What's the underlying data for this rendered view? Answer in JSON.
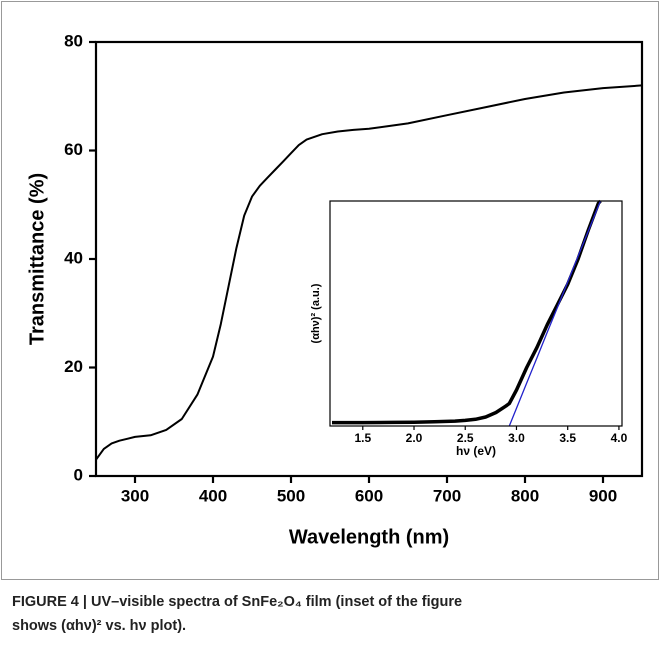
{
  "chart_data": [
    {
      "type": "line",
      "xlabel": "Wavelength (nm)",
      "ylabel": "Transmittance (%)",
      "x": [
        250,
        260,
        270,
        280,
        300,
        320,
        340,
        360,
        380,
        400,
        410,
        420,
        430,
        440,
        450,
        460,
        470,
        480,
        490,
        500,
        510,
        520,
        540,
        560,
        580,
        600,
        650,
        700,
        750,
        800,
        850,
        900,
        950
      ],
      "series": [
        {
          "color": "#000000",
          "values": [
            3,
            5,
            6,
            6.5,
            7.2,
            7.5,
            8.5,
            10.5,
            15,
            22,
            28,
            35,
            42,
            48,
            51.5,
            53.5,
            55,
            56.5,
            58,
            59.5,
            61,
            62,
            63,
            63.5,
            63.8,
            64,
            65,
            66.5,
            68,
            69.5,
            70.7,
            71.5,
            72
          ]
        }
      ],
      "xlim": [
        250,
        950
      ],
      "xticks": [
        300,
        400,
        500,
        600,
        700,
        800,
        900
      ],
      "ylim": [
        0,
        80
      ],
      "yticks": [
        0,
        20,
        40,
        60,
        80
      ]
    },
    {
      "type": "line",
      "xlabel": "hν (eV)",
      "ylabel": "(αhν)² (a.u.)",
      "x": [
        1.2,
        1.5,
        1.8,
        2.0,
        2.2,
        2.4,
        2.5,
        2.6,
        2.7,
        2.8,
        2.9,
        2.93,
        3.0,
        3.1,
        3.2,
        3.3,
        3.4,
        3.5,
        3.6,
        3.7,
        3.8,
        3.82
      ],
      "series": [
        {
          "color": "#000000",
          "values": [
            1.5,
            1.5,
            1.6,
            1.7,
            1.9,
            2.2,
            2.5,
            3,
            4,
            6,
            9,
            10,
            16,
            26,
            35,
            45,
            54,
            63,
            74,
            87,
            99,
            100
          ]
        },
        {
          "color": "#2222cc",
          "values": [
            null,
            null,
            null,
            null,
            null,
            null,
            null,
            null,
            null,
            null,
            null,
            0,
            7.9,
            19.1,
            30.3,
            41.6,
            52.8,
            64,
            75.3,
            86.5,
            97.8,
            100
          ]
        }
      ],
      "xlim": [
        1.18,
        4.03
      ],
      "xticks": [
        {
          "value": 1.5,
          "label": "1.5"
        },
        {
          "value": 2,
          "label": "2.0"
        },
        {
          "value": 2.5,
          "label": "2.5"
        },
        {
          "value": 3,
          "label": "3.0"
        },
        {
          "value": 3.5,
          "label": "3.5"
        },
        {
          "value": 4,
          "label": "4.0"
        }
      ],
      "ylim": [
        0,
        100
      ]
    }
  ],
  "caption": [
    "FIGURE 4 | UV–visible spectra of SnFe₂O₄ film (inset of the figure",
    "shows (αhν)² vs. hν plot)."
  ]
}
